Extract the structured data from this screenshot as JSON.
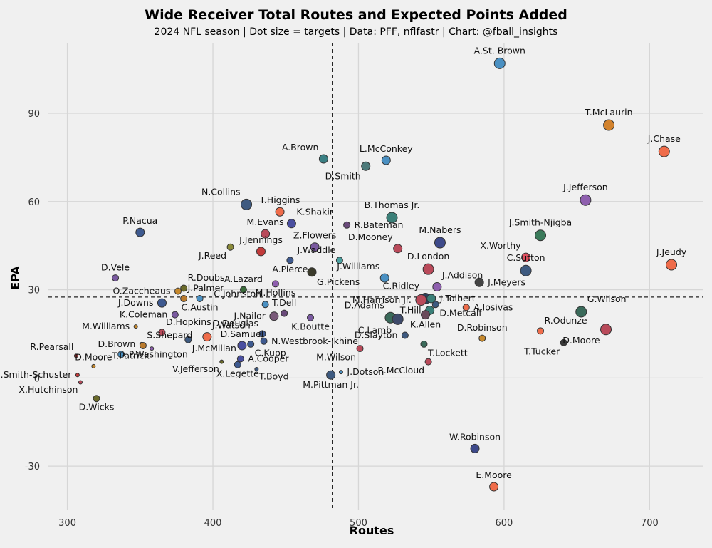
{
  "chart_data": {
    "type": "scatter",
    "title": "Wide Receiver Total Routes and Expected Points Added",
    "subtitle": "2024 NFL season | Dot size = targets | Data: PFF, nflfastr | Chart: @fball_insights",
    "xlabel": "Routes",
    "ylabel": "EPA",
    "xlim": [
      287,
      737
    ],
    "ylim": [
      -45,
      114
    ],
    "xticks": [
      300,
      400,
      500,
      600,
      700
    ],
    "yticks": [
      -30,
      0,
      30,
      60,
      90
    ],
    "grid": true,
    "reference_lines": {
      "x": 482,
      "y": 27.5,
      "style": "dashed"
    },
    "points": [
      {
        "name": "A.St. Brown",
        "x": 597,
        "y": 107,
        "size": "large",
        "color": "#4a90c2",
        "label_pos": "above"
      },
      {
        "name": "T.McLaurin",
        "x": 672,
        "y": 86,
        "size": "large",
        "color": "#d2822d",
        "label_pos": "above"
      },
      {
        "name": "J.Chase",
        "x": 710,
        "y": 77,
        "size": "large",
        "color": "#ef6c4a",
        "label_pos": "above"
      },
      {
        "name": "A.Brown",
        "x": 476,
        "y": 74.5,
        "size": "medium",
        "color": "#3a7f83",
        "label_pos": "above-left"
      },
      {
        "name": "L.McConkey",
        "x": 519,
        "y": 74,
        "size": "medium",
        "color": "#4a90c2",
        "label_pos": "above"
      },
      {
        "name": "D.Smith",
        "x": 505,
        "y": 72,
        "size": "medium",
        "color": "#4d7a7a",
        "label_pos": "below-left"
      },
      {
        "name": "J.Jefferson",
        "x": 656,
        "y": 60.5,
        "size": "large",
        "color": "#8e5fae",
        "label_pos": "above"
      },
      {
        "name": "N.Collins",
        "x": 423,
        "y": 59,
        "size": "large",
        "color": "#3e5a80",
        "label_pos": "above-left"
      },
      {
        "name": "T.Higgins",
        "x": 446,
        "y": 56.5,
        "size": "medium",
        "color": "#ef6c4a",
        "label_pos": "above"
      },
      {
        "name": "B.Thomas Jr.",
        "x": 523,
        "y": 54.5,
        "size": "large",
        "color": "#3a7f78",
        "label_pos": "above"
      },
      {
        "name": "K.Shakir",
        "x": 454,
        "y": 52.5,
        "size": "medium",
        "color": "#4a4fa0",
        "label_pos": "above-right"
      },
      {
        "name": "R.Bateman",
        "x": 492,
        "y": 52,
        "size": "small",
        "color": "#6a4a7a",
        "label_pos": "right"
      },
      {
        "name": "J.Smith-Njigba",
        "x": 625,
        "y": 48.5,
        "size": "large",
        "color": "#3a7a5a",
        "label_pos": "above"
      },
      {
        "name": "M.Evans",
        "x": 436,
        "y": 49,
        "size": "medium",
        "color": "#b94a5a",
        "label_pos": "above"
      },
      {
        "name": "P.Nacua",
        "x": 350,
        "y": 49.5,
        "size": "medium",
        "color": "#3e5a90",
        "label_pos": "above"
      },
      {
        "name": "M.Nabers",
        "x": 556,
        "y": 46,
        "size": "large",
        "color": "#3e4a8a",
        "label_pos": "above"
      },
      {
        "name": "Z.Flowers",
        "x": 470,
        "y": 44.5,
        "size": "medium",
        "color": "#7a5aa0",
        "label_pos": "above"
      },
      {
        "name": "D.Mooney",
        "x": 527,
        "y": 44,
        "size": "medium",
        "color": "#b94a5a",
        "label_pos": "above-left"
      },
      {
        "name": "J.Jennings",
        "x": 433,
        "y": 43,
        "size": "medium",
        "color": "#c23a3a",
        "label_pos": "above"
      },
      {
        "name": "J.Reed",
        "x": 412,
        "y": 44.5,
        "size": "small",
        "color": "#8a8a3a",
        "label_pos": "below-left"
      },
      {
        "name": "J.Waddle",
        "x": 487,
        "y": 40,
        "size": "small",
        "color": "#4aa0a0",
        "label_pos": "above-left"
      },
      {
        "name": "X.Worthy",
        "x": 615,
        "y": 41,
        "size": "medium",
        "color": "#e05060",
        "label_pos": "above-left"
      },
      {
        "name": "J.Jeudy",
        "x": 715,
        "y": 38.5,
        "size": "large",
        "color": "#ef6c4a",
        "label_pos": "above"
      },
      {
        "name": "A.Pierce",
        "x": 453,
        "y": 40,
        "size": "small",
        "color": "#3e5a90",
        "label_pos": "below"
      },
      {
        "name": "D.London",
        "x": 548,
        "y": 37,
        "size": "large",
        "color": "#b94a5a",
        "label_pos": "above"
      },
      {
        "name": "C.Sutton",
        "x": 615,
        "y": 36.5,
        "size": "large",
        "color": "#3e5a80",
        "label_pos": "above"
      },
      {
        "name": "G.Pickens",
        "x": 468,
        "y": 36,
        "size": "medium",
        "color": "#3a3a2a",
        "label_pos": "below-right"
      },
      {
        "name": "J.Williams",
        "x": 518,
        "y": 34,
        "size": "medium",
        "color": "#4a90c2",
        "label_pos": "above-left"
      },
      {
        "name": "J.Addison",
        "x": 554,
        "y": 31,
        "size": "medium",
        "color": "#8e5fae",
        "label_pos": "above-right"
      },
      {
        "name": "J.Meyers",
        "x": 583,
        "y": 32.5,
        "size": "medium",
        "color": "#444444",
        "label_pos": "right"
      },
      {
        "name": "D.Vele",
        "x": 333,
        "y": 34,
        "size": "small",
        "color": "#7a5aa0",
        "label_pos": "above"
      },
      {
        "name": "R.Doubs",
        "x": 380,
        "y": 30.5,
        "size": "small",
        "color": "#6a6a2a",
        "label_pos": "above-right"
      },
      {
        "name": "O.Zaccheaus",
        "x": 376,
        "y": 29.5,
        "size": "small",
        "color": "#c6892d",
        "label_pos": "left"
      },
      {
        "name": "A.Lazard",
        "x": 421,
        "y": 30,
        "size": "small",
        "color": "#3a6a3a",
        "label_pos": "above"
      },
      {
        "name": "M.Hollins",
        "x": 443,
        "y": 32,
        "size": "small",
        "color": "#8e5fae",
        "label_pos": "below"
      },
      {
        "name": "J.Palmer",
        "x": 380,
        "y": 27,
        "size": "small",
        "color": "#b97a2d",
        "label_pos": "above-right"
      },
      {
        "name": "J.Downs",
        "x": 365,
        "y": 25.5,
        "size": "medium",
        "color": "#3e5a90",
        "label_pos": "left"
      },
      {
        "name": "C.Ridley",
        "x": 546,
        "y": 27,
        "size": "large",
        "color": "#2e3e5a",
        "label_pos": "above-left"
      },
      {
        "name": "J.Tolbert",
        "x": 550,
        "y": 27,
        "size": "medium",
        "color": "#3a7f78",
        "label_pos": "right"
      },
      {
        "name": "M.Harrison Jr.",
        "x": 543,
        "y": 26.5,
        "size": "large",
        "color": "#b94a5a",
        "label_pos": "left"
      },
      {
        "name": "D.Adams",
        "x": 522,
        "y": 20.5,
        "size": "large",
        "color": "#3a6a5a",
        "label_pos": "above-left"
      },
      {
        "name": "T.Hill",
        "x": 549,
        "y": 23,
        "size": "medium",
        "color": "#3a7f78",
        "label_pos": "left"
      },
      {
        "name": "A.Iosivas",
        "x": 574,
        "y": 24,
        "size": "small",
        "color": "#ef6c4a",
        "label_pos": "right"
      },
      {
        "name": "G.Wilson",
        "x": 653,
        "y": 22.5,
        "size": "large",
        "color": "#3a6a5a",
        "label_pos": "above-right"
      },
      {
        "name": "C.Johnston",
        "x": 436,
        "y": 25,
        "size": "small",
        "color": "#4a90c2",
        "label_pos": "above-left"
      },
      {
        "name": "D.Metcalf",
        "x": 553,
        "y": 25,
        "size": "small",
        "color": "#3e5a80",
        "label_pos": "below-right"
      },
      {
        "name": "K.Coleman",
        "x": 374,
        "y": 21.5,
        "size": "small",
        "color": "#7a5aa0",
        "label_pos": "left"
      },
      {
        "name": "C.Austin",
        "x": 391,
        "y": 27,
        "size": "small",
        "color": "#4a90c2",
        "label_pos": "below"
      },
      {
        "name": "T.Dell",
        "x": 449,
        "y": 22,
        "size": "small",
        "color": "#6a4a7a",
        "label_pos": "above"
      },
      {
        "name": "J.Nailor",
        "x": 442,
        "y": 21,
        "size": "medium",
        "color": "#7a5a7a",
        "label_pos": "left"
      },
      {
        "name": "K.Boutte",
        "x": 467,
        "y": 20.5,
        "size": "small",
        "color": "#7a5aa0",
        "label_pos": "below"
      },
      {
        "name": "C.Lamb",
        "x": 527,
        "y": 20,
        "size": "large",
        "color": "#3e4a6a",
        "label_pos": "below-left"
      },
      {
        "name": "K.Allen",
        "x": 546,
        "y": 21.5,
        "size": "medium",
        "color": "#6a4a5a",
        "label_pos": "below"
      },
      {
        "name": "M.Williams",
        "x": 347,
        "y": 17.5,
        "size": "tiny",
        "color": "#c6892d",
        "label_pos": "left"
      },
      {
        "name": "D.Hopkins",
        "x": 365,
        "y": 15.5,
        "size": "small",
        "color": "#b94a5a",
        "label_pos": "above-right"
      },
      {
        "name": "J.Watson",
        "x": 396,
        "y": 14,
        "size": "medium",
        "color": "#ef6c4a",
        "label_pos": "above-right"
      },
      {
        "name": "D.Douglas",
        "x": 434,
        "y": 15,
        "size": "small",
        "color": "#3e5a90",
        "label_pos": "above-left"
      },
      {
        "name": "N.Westbrook-Ikhine",
        "x": 435,
        "y": 12.5,
        "size": "small",
        "color": "#3e5a90",
        "label_pos": "right"
      },
      {
        "name": "D.Slayton",
        "x": 532,
        "y": 14.5,
        "size": "small",
        "color": "#3e5a80",
        "label_pos": "left"
      },
      {
        "name": "D.Robinson",
        "x": 585,
        "y": 13.5,
        "size": "small",
        "color": "#c6892d",
        "label_pos": "above"
      },
      {
        "name": "R.Odunze",
        "x": 625,
        "y": 16,
        "size": "small",
        "color": "#ef6c4a",
        "label_pos": "above-right"
      },
      {
        "name": "D.Moore",
        "x": 670,
        "y": 16.5,
        "size": "large",
        "color": "#b94a5a",
        "label_pos": "below-left"
      },
      {
        "name": "D.Brown",
        "x": 351,
        "y": 11.5,
        "size": "tiny",
        "color": "#c6892d",
        "label_pos": "left"
      },
      {
        "name": "S.Shepard",
        "x": 352,
        "y": 11,
        "size": "small",
        "color": "#b97a2d",
        "label_pos": "above-right"
      },
      {
        "name": "D.Samuel",
        "x": 420,
        "y": 11,
        "size": "medium",
        "color": "#4a4fa0",
        "label_pos": "above"
      },
      {
        "name": "C.Kupp",
        "x": 426,
        "y": 11.5,
        "size": "small",
        "color": "#3e5a90",
        "label_pos": "below-right"
      },
      {
        "name": "T.Lockett",
        "x": 545,
        "y": 11.5,
        "size": "small",
        "color": "#3a6a5a",
        "label_pos": "below-right"
      },
      {
        "name": "T.Tucker",
        "x": 641,
        "y": 12,
        "size": "small",
        "color": "#3a3a3a",
        "label_pos": "below-left"
      },
      {
        "name": "R.Pearsall",
        "x": 306,
        "y": 7.5,
        "size": "tiny",
        "color": "#c23a3a",
        "label_pos": "above-left"
      },
      {
        "name": "D.Moore",
        "x": 318,
        "y": 4,
        "size": "tiny",
        "color": "#c6892d",
        "label_pos": "above"
      },
      {
        "name": "P.Washington",
        "x": 337,
        "y": 8,
        "size": "small",
        "color": "#4a90c2",
        "label_pos": "right"
      },
      {
        "name": "T.Patrick",
        "x": 358,
        "y": 10,
        "size": "tiny",
        "color": "#8e5fae",
        "label_pos": "below-left"
      },
      {
        "name": "J.McMillan",
        "x": 383,
        "y": 13,
        "size": "small",
        "color": "#3e5a80",
        "label_pos": "below-right"
      },
      {
        "name": "V.Jefferson",
        "x": 406,
        "y": 5.5,
        "size": "tiny",
        "color": "#6a6a2a",
        "label_pos": "below-left"
      },
      {
        "name": "A.Cooper",
        "x": 419,
        "y": 6.5,
        "size": "small",
        "color": "#4a4fa0",
        "label_pos": "right"
      },
      {
        "name": "X.Legette",
        "x": 417,
        "y": 4.5,
        "size": "small",
        "color": "#3e5a90",
        "label_pos": "below"
      },
      {
        "name": "T.Boyd",
        "x": 430,
        "y": 3,
        "size": "tiny",
        "color": "#3e5a80",
        "label_pos": "below-right"
      },
      {
        "name": "M.Wilson",
        "x": 501,
        "y": 10,
        "size": "small",
        "color": "#b94a5a",
        "label_pos": "below-left"
      },
      {
        "name": "R.McCloud",
        "x": 548,
        "y": 5.5,
        "size": "small",
        "color": "#b94a5a",
        "label_pos": "below-left"
      },
      {
        "name": "J.Dotson",
        "x": 488,
        "y": 2,
        "size": "tiny",
        "color": "#4a90c2",
        "label_pos": "right"
      },
      {
        "name": "M.Pittman Jr.",
        "x": 481,
        "y": 1,
        "size": "medium",
        "color": "#3e5a80",
        "label_pos": "below"
      },
      {
        "name": "J.Smith-Schuster",
        "x": 307,
        "y": 1,
        "size": "tiny",
        "color": "#c23a3a",
        "label_pos": "left"
      },
      {
        "name": "X.Hutchinson",
        "x": 309,
        "y": -1.5,
        "size": "tiny",
        "color": "#b94a5a",
        "label_pos": "below-left"
      },
      {
        "name": "D.Wicks",
        "x": 320,
        "y": -7,
        "size": "small",
        "color": "#6a6a2a",
        "label_pos": "below"
      },
      {
        "name": "W.Robinson",
        "x": 580,
        "y": -24,
        "size": "medium",
        "color": "#3e4a8a",
        "label_pos": "above"
      },
      {
        "name": "E.Moore",
        "x": 593,
        "y": -37,
        "size": "medium",
        "color": "#ef6c4a",
        "label_pos": "above"
      }
    ]
  }
}
